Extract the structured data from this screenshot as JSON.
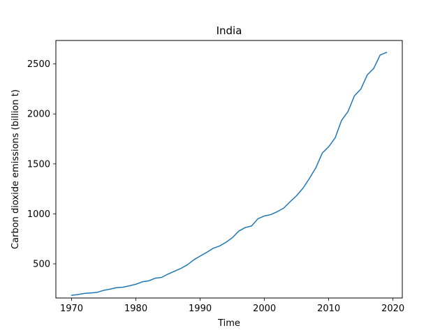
{
  "chart_data": {
    "type": "line",
    "title": "India",
    "xlabel": "Time",
    "ylabel": "Carbon dioxide emissions (billion t)",
    "xlim": [
      1967.55,
      2021.45
    ],
    "ylim": [
      158,
      2735
    ],
    "xticks": [
      1970,
      1980,
      1990,
      2000,
      2010,
      2020
    ],
    "yticks": [
      500,
      1000,
      1500,
      2000,
      2500
    ],
    "grid": false,
    "legend": "none",
    "series": [
      {
        "color": "#1f77b4",
        "x": [
          1970,
          1971,
          1972,
          1973,
          1974,
          1975,
          1976,
          1977,
          1978,
          1979,
          1980,
          1981,
          1982,
          1983,
          1984,
          1985,
          1986,
          1987,
          1988,
          1989,
          1990,
          1991,
          1992,
          1993,
          1994,
          1995,
          1996,
          1997,
          1998,
          1999,
          2000,
          2001,
          2002,
          2003,
          2004,
          2005,
          2006,
          2007,
          2008,
          2009,
          2010,
          2011,
          2012,
          2013,
          2014,
          2015,
          2016,
          2017,
          2018,
          2019
        ],
        "y": [
          185,
          193,
          204,
          209,
          215,
          235,
          247,
          262,
          266,
          280,
          296,
          320,
          330,
          356,
          364,
          398,
          426,
          454,
          490,
          540,
          578,
          614,
          655,
          678,
          715,
          761,
          827,
          863,
          879,
          952,
          979,
          993,
          1022,
          1058,
          1122,
          1182,
          1257,
          1355,
          1461,
          1609,
          1672,
          1760,
          1936,
          2024,
          2181,
          2249,
          2391,
          2455,
          2590,
          2616
        ]
      }
    ]
  }
}
